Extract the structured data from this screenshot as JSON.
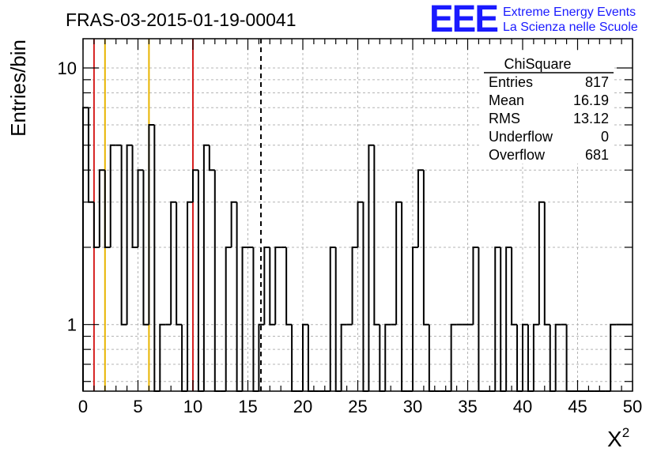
{
  "chart_data": {
    "type": "histogram",
    "title": "FRAS-03-2015-01-19-00041",
    "xlabel": "X",
    "xlabel_sup": "2",
    "ylabel": "Entries/bin",
    "xlim": [
      0,
      50
    ],
    "ylim": [
      0.55,
      13
    ],
    "y_scale": "log",
    "grid": true,
    "x_ticks": [
      "0",
      "5",
      "10",
      "15",
      "20",
      "25",
      "30",
      "35",
      "40",
      "45",
      "50"
    ],
    "y_ticks": [
      "1",
      "10"
    ],
    "bin_width": 0.5,
    "bins": [
      {
        "x": 0,
        "y": 7
      },
      {
        "x": 0.5,
        "y": 3
      },
      {
        "x": 1,
        "y": 2
      },
      {
        "x": 1.5,
        "y": 4
      },
      {
        "x": 2,
        "y": 2
      },
      {
        "x": 2.5,
        "y": 5
      },
      {
        "x": 3,
        "y": 5
      },
      {
        "x": 3.5,
        "y": 1
      },
      {
        "x": 4,
        "y": 5
      },
      {
        "x": 4.5,
        "y": 2
      },
      {
        "x": 5,
        "y": 4
      },
      {
        "x": 5.5,
        "y": 1
      },
      {
        "x": 6,
        "y": 6
      },
      {
        "x": 6.5,
        "y": 0
      },
      {
        "x": 7,
        "y": 1
      },
      {
        "x": 7.5,
        "y": 1
      },
      {
        "x": 8,
        "y": 3
      },
      {
        "x": 8.5,
        "y": 1
      },
      {
        "x": 9,
        "y": 0
      },
      {
        "x": 9.5,
        "y": 3
      },
      {
        "x": 10,
        "y": 4
      },
      {
        "x": 10.5,
        "y": 0
      },
      {
        "x": 11,
        "y": 5
      },
      {
        "x": 11.5,
        "y": 4
      },
      {
        "x": 12,
        "y": 0
      },
      {
        "x": 12.5,
        "y": 0
      },
      {
        "x": 13,
        "y": 2
      },
      {
        "x": 13.5,
        "y": 3
      },
      {
        "x": 14,
        "y": 0
      },
      {
        "x": 14.5,
        "y": 2
      },
      {
        "x": 15,
        "y": 2
      },
      {
        "x": 15.5,
        "y": 0
      },
      {
        "x": 16,
        "y": 1
      },
      {
        "x": 16.5,
        "y": 2
      },
      {
        "x": 17,
        "y": 1
      },
      {
        "x": 17.5,
        "y": 2
      },
      {
        "x": 18,
        "y": 2
      },
      {
        "x": 18.5,
        "y": 1
      },
      {
        "x": 19,
        "y": 0
      },
      {
        "x": 19.5,
        "y": 0
      },
      {
        "x": 20,
        "y": 1
      },
      {
        "x": 20.5,
        "y": 0
      },
      {
        "x": 21,
        "y": 0
      },
      {
        "x": 21.5,
        "y": 0
      },
      {
        "x": 22,
        "y": 0
      },
      {
        "x": 22.5,
        "y": 2
      },
      {
        "x": 23,
        "y": 0
      },
      {
        "x": 23.5,
        "y": 1
      },
      {
        "x": 24,
        "y": 1
      },
      {
        "x": 24.5,
        "y": 2
      },
      {
        "x": 25,
        "y": 3
      },
      {
        "x": 25.5,
        "y": 0
      },
      {
        "x": 26,
        "y": 5
      },
      {
        "x": 26.5,
        "y": 1
      },
      {
        "x": 27,
        "y": 0
      },
      {
        "x": 27.5,
        "y": 1
      },
      {
        "x": 28,
        "y": 1
      },
      {
        "x": 28.5,
        "y": 3
      },
      {
        "x": 29,
        "y": 0
      },
      {
        "x": 29.5,
        "y": 0
      },
      {
        "x": 30,
        "y": 2
      },
      {
        "x": 30.5,
        "y": 4
      },
      {
        "x": 31,
        "y": 1
      },
      {
        "x": 31.5,
        "y": 0
      },
      {
        "x": 32,
        "y": 0
      },
      {
        "x": 32.5,
        "y": 0
      },
      {
        "x": 33,
        "y": 0
      },
      {
        "x": 33.5,
        "y": 1
      },
      {
        "x": 34,
        "y": 1
      },
      {
        "x": 34.5,
        "y": 1
      },
      {
        "x": 35,
        "y": 1
      },
      {
        "x": 35.5,
        "y": 2
      },
      {
        "x": 36,
        "y": 0
      },
      {
        "x": 36.5,
        "y": 0
      },
      {
        "x": 37,
        "y": 0
      },
      {
        "x": 37.5,
        "y": 2
      },
      {
        "x": 38,
        "y": 0
      },
      {
        "x": 38.5,
        "y": 2
      },
      {
        "x": 39,
        "y": 1
      },
      {
        "x": 39.5,
        "y": 0
      },
      {
        "x": 40,
        "y": 1
      },
      {
        "x": 40.5,
        "y": 0
      },
      {
        "x": 41,
        "y": 1
      },
      {
        "x": 41.5,
        "y": 3
      },
      {
        "x": 42,
        "y": 1
      },
      {
        "x": 42.5,
        "y": 0
      },
      {
        "x": 43,
        "y": 1
      },
      {
        "x": 43.5,
        "y": 1
      },
      {
        "x": 44,
        "y": 0
      },
      {
        "x": 44.5,
        "y": 0
      },
      {
        "x": 45,
        "y": 0
      },
      {
        "x": 45.5,
        "y": 0
      },
      {
        "x": 46,
        "y": 0
      },
      {
        "x": 46.5,
        "y": 0
      },
      {
        "x": 47,
        "y": 0
      },
      {
        "x": 47.5,
        "y": 0
      },
      {
        "x": 48,
        "y": 1
      },
      {
        "x": 48.5,
        "y": 1
      },
      {
        "x": 49,
        "y": 1
      },
      {
        "x": 49.5,
        "y": 1
      }
    ],
    "vertical_lines": [
      {
        "x": 1,
        "color": "#d62020",
        "style": "solid"
      },
      {
        "x": 2,
        "color": "#e8b400",
        "style": "solid"
      },
      {
        "x": 6,
        "color": "#e8b400",
        "style": "solid"
      },
      {
        "x": 10,
        "color": "#d62020",
        "style": "solid"
      },
      {
        "x": 16.19,
        "color": "#000000",
        "style": "dashed"
      }
    ],
    "stats_box": {
      "title": "ChiSquare",
      "rows": [
        {
          "label": "Entries",
          "value": "817"
        },
        {
          "label": "Mean",
          "value": "16.19"
        },
        {
          "label": "RMS",
          "value": "13.12"
        },
        {
          "label": "Underflow",
          "value": "0"
        },
        {
          "label": "Overflow",
          "value": "681"
        }
      ]
    }
  },
  "logo": {
    "mark": "EEE",
    "line1": "Extreme Energy Events",
    "line2": "La Scienza nelle Scuole",
    "color": "#1a1aff"
  }
}
